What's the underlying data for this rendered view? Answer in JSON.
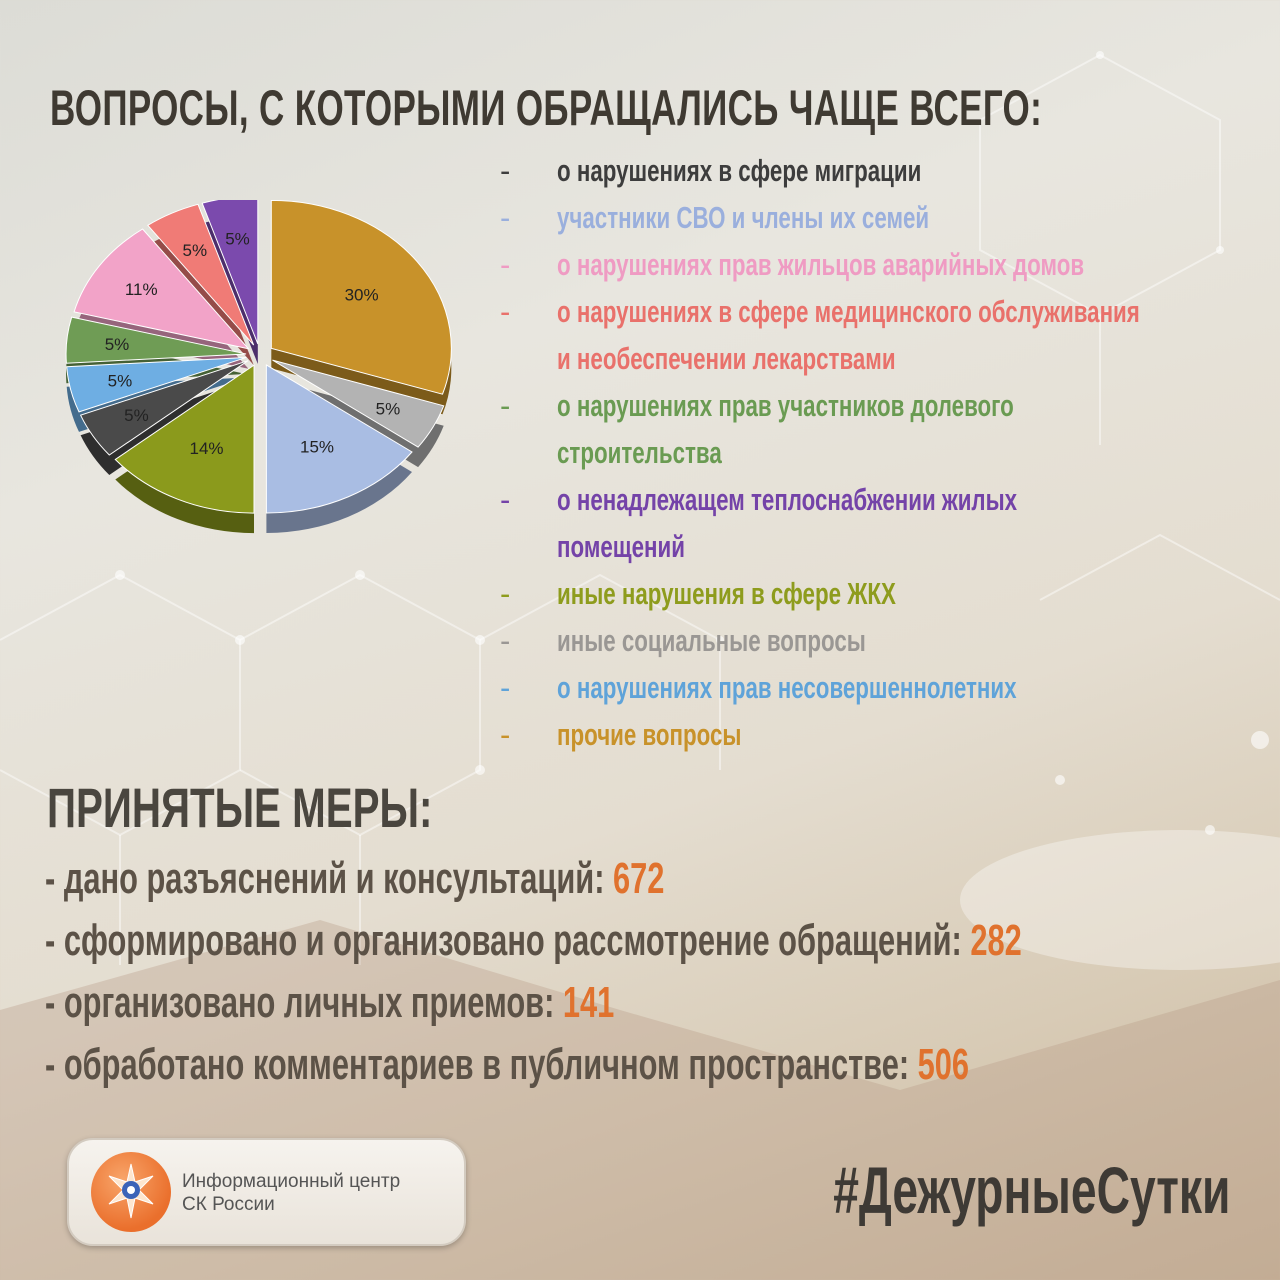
{
  "title": "ВОПРОСЫ, С КОТОРЫМИ ОБРАЩАЛИСЬ ЧАЩЕ ВСЕГО:",
  "chart_data": {
    "type": "pie",
    "slices": [
      {
        "label": "прочие вопросы",
        "value": 30,
        "label_text": "30%",
        "color": "#c8922a"
      },
      {
        "label": "иные социальные вопросы",
        "value": 5,
        "label_text": "5%",
        "color": "#b3b3b3"
      },
      {
        "label": "участники СВО и члены их семей",
        "value": 15,
        "label_text": "15%",
        "color": "#a9bde3"
      },
      {
        "label": "иные нарушения в сфере ЖКХ",
        "value": 14,
        "label_text": "14%",
        "color": "#8b9a1c"
      },
      {
        "label": "о нарушениях в сфере миграции",
        "value": 5,
        "label_text": "5%",
        "color": "#4a4a4a"
      },
      {
        "label": "о нарушениях прав несовершеннолетних",
        "value": 5,
        "label_text": "5%",
        "color": "#6eaee3"
      },
      {
        "label": "о нарушениях прав участников долевого строительства",
        "value": 5,
        "label_text": "5%",
        "color": "#6f9c55"
      },
      {
        "label": "о нарушениях прав жильцов аварийных домов",
        "value": 11,
        "label_text": "11%",
        "color": "#f2a3c8"
      },
      {
        "label": "о нарушениях в сфере медицинского обслуживания и необеспечении лекарствами",
        "value": 5,
        "label_text": "5%",
        "color": "#f07b76"
      },
      {
        "label": "о ненадлежащем теплоснабжении жилых помещений",
        "value": 5,
        "label_text": "5%",
        "color": "#7b4aad"
      }
    ]
  },
  "legend": [
    {
      "dash": "-",
      "text": "о нарушениях в сфере миграции",
      "color": "#3d3d3d",
      "wrap": false
    },
    {
      "dash": "-",
      "text": "участники СВО и члены их семей",
      "color": "#9aafdd",
      "wrap": false
    },
    {
      "dash": "-",
      "text": "о нарушениях прав жильцов аварийных домов",
      "color": "#ef9bc3",
      "wrap": false
    },
    {
      "dash": "-",
      "text": "о нарушениях в сфере медицинского обслуживания и необеспечении лекарствами",
      "color": "#e9716b",
      "wrap": true
    },
    {
      "dash": "-",
      "text": "о нарушениях прав участников долевого строительства",
      "color": "#6a9b52",
      "wrap": true
    },
    {
      "dash": "-",
      "text": "о ненадлежащем теплоснабжении жилых помещений",
      "color": "#7443a8",
      "wrap": true
    },
    {
      "dash": "-",
      "text": "иные нарушения в сфере ЖКХ",
      "color": "#8e9c1d",
      "wrap": false
    },
    {
      "dash": "-",
      "text": "иные социальные вопросы",
      "color": "#9a9794",
      "wrap": false
    },
    {
      "dash": "-",
      "text": "о нарушениях прав несовершеннолетних",
      "color": "#5fa3d9",
      "wrap": false
    },
    {
      "dash": "-",
      "text": "прочие вопросы",
      "color": "#c8922a",
      "wrap": false
    }
  ],
  "measures_heading": "ПРИНЯТЫЕ МЕРЫ:",
  "measures": [
    {
      "text": "- дано разъяснений и консультаций: ",
      "value": "672"
    },
    {
      "text": "- сформировано и организовано рассмотрение обращений: ",
      "value": "282"
    },
    {
      "text": "- организовано личных приемов: ",
      "value": "141"
    },
    {
      "text": "- обработано комментариев в публичном пространстве: ",
      "value": "506"
    }
  ],
  "logo": {
    "line1": "Информационный центр",
    "line2": "СК России"
  },
  "hashtag": "#ДежурныеСутки"
}
